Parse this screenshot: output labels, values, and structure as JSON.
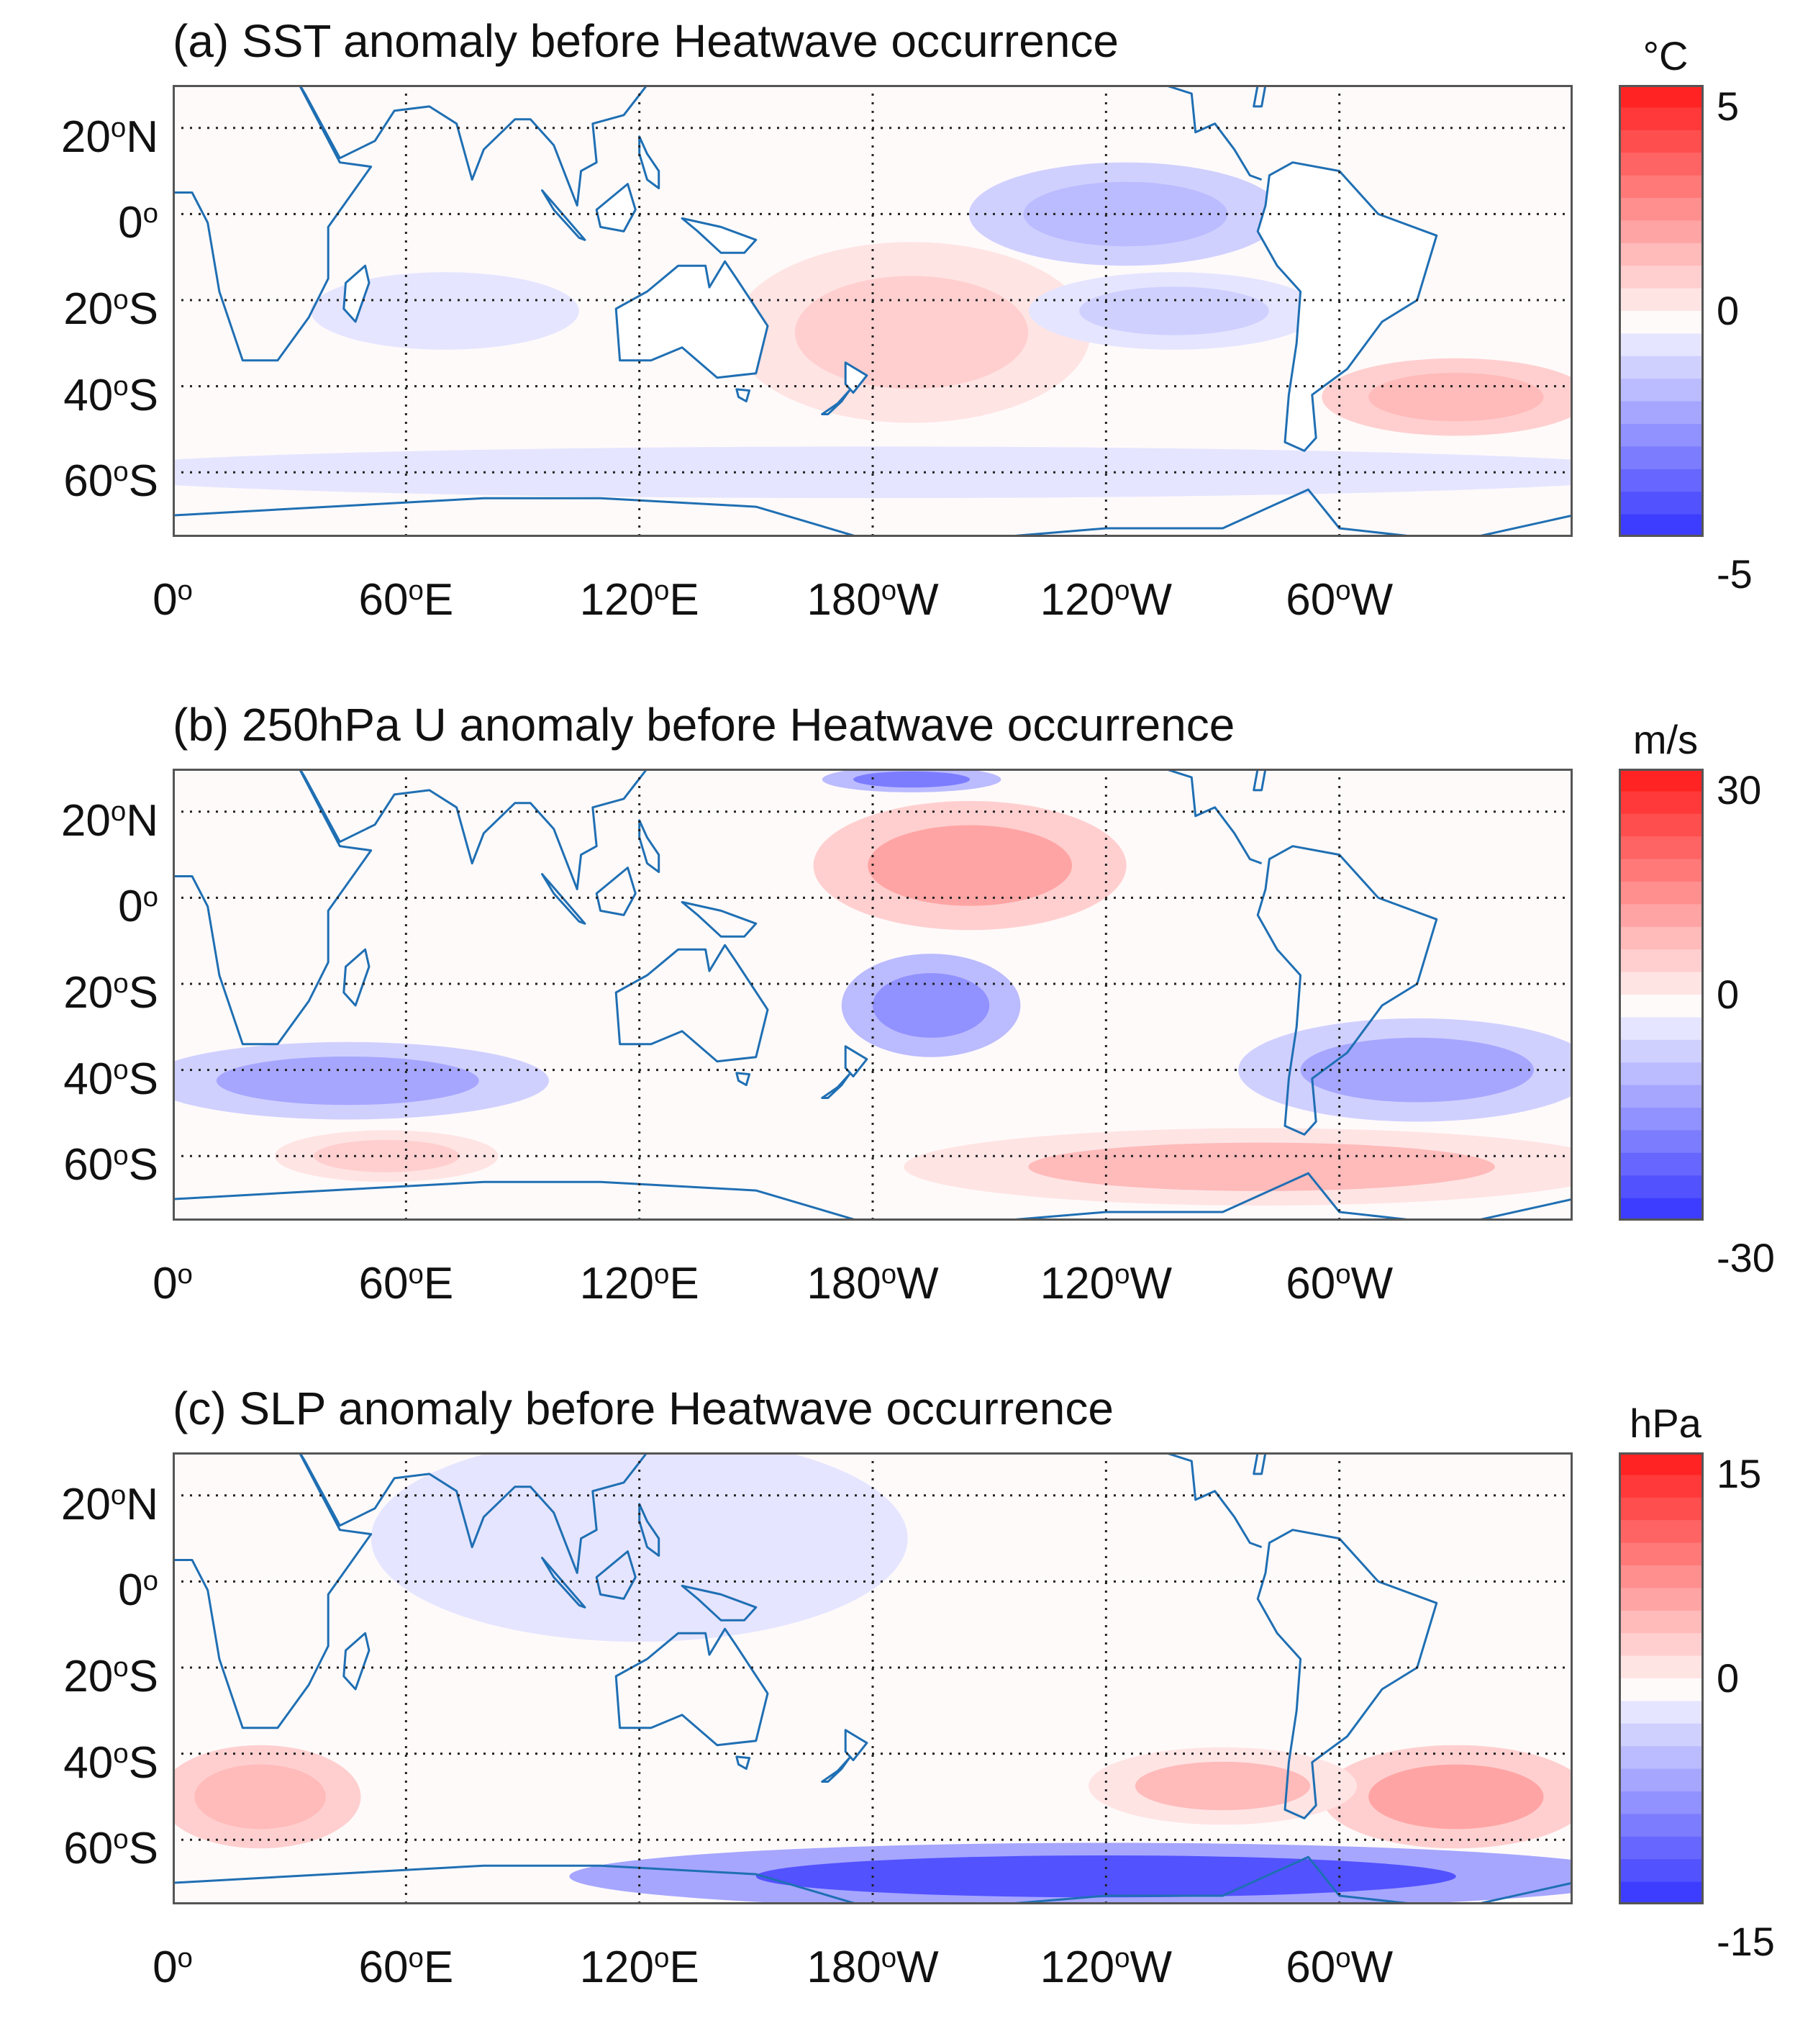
{
  "chart_data": [
    {
      "type": "heatmap",
      "title": "(a) SST anomaly before Heatwave occurrence",
      "variable": "SST",
      "unit": "°C",
      "clim": [
        -5,
        5
      ],
      "colorbar_ticks": [
        "5",
        "0",
        "-5"
      ],
      "lon_range": [
        0,
        360
      ],
      "lat_range": [
        -75,
        30
      ],
      "anomaly_regions": [
        {
          "region": "SW Pacific / east of Australia",
          "lon": [
            150,
            230
          ],
          "lat": [
            -45,
            -10
          ],
          "value": 1.2
        },
        {
          "region": "SW Atlantic off Argentina",
          "lon": [
            300,
            360
          ],
          "lat": [
            -50,
            -35
          ],
          "value": 1.5
        },
        {
          "region": "Eastern equatorial Pacific",
          "lon": [
            210,
            280
          ],
          "lat": [
            -10,
            10
          ],
          "value": -1.5
        },
        {
          "region": "Subtropical SE Pacific",
          "lon": [
            225,
            290
          ],
          "lat": [
            -30,
            -15
          ],
          "value": -1.0
        },
        {
          "region": "Southern Ocean band",
          "lon": [
            0,
            360
          ],
          "lat": [
            -65,
            -55
          ],
          "value": -0.7
        },
        {
          "region": "Western Indian Ocean",
          "lon": [
            40,
            100
          ],
          "lat": [
            -30,
            -15
          ],
          "value": -0.5
        }
      ]
    },
    {
      "type": "heatmap",
      "title": "(b) 250hPa U anomaly before Heatwave occurrence",
      "variable": "250hPa U",
      "unit": "m/s",
      "clim": [
        -30,
        30
      ],
      "colorbar_ticks": [
        "30",
        "0",
        "-30"
      ],
      "lon_range": [
        0,
        360
      ],
      "lat_range": [
        -75,
        30
      ],
      "anomaly_regions": [
        {
          "region": "Central Pacific near equator",
          "lon": [
            170,
            240
          ],
          "lat": [
            -5,
            20
          ],
          "value": 12
        },
        {
          "region": "North Pacific jet",
          "lon": [
            170,
            210
          ],
          "lat": [
            25,
            30
          ],
          "value": -18
        },
        {
          "region": "Indian Ocean 40S",
          "lon": [
            0,
            90
          ],
          "lat": [
            -50,
            -35
          ],
          "value": -12
        },
        {
          "region": "South Pacific 25S",
          "lon": [
            175,
            215
          ],
          "lat": [
            -35,
            -15
          ],
          "value": -14
        },
        {
          "region": "South America / Atlantic 40S",
          "lon": [
            280,
            360
          ],
          "lat": [
            -50,
            -30
          ],
          "value": -12
        },
        {
          "region": "Southern Ocean 60S Pacific",
          "lon": [
            200,
            360
          ],
          "lat": [
            -70,
            -55
          ],
          "value": 8
        },
        {
          "region": "Southern Ocean 60S Indian",
          "lon": [
            30,
            80
          ],
          "lat": [
            -65,
            -55
          ],
          "value": 7
        }
      ]
    },
    {
      "type": "heatmap",
      "title": "(c) SLP anomaly before Heatwave occurrence",
      "variable": "SLP",
      "unit": "hPa",
      "clim": [
        -15,
        15
      ],
      "colorbar_ticks": [
        "15",
        "0",
        "-15"
      ],
      "lon_range": [
        0,
        360
      ],
      "lat_range": [
        -75,
        30
      ],
      "anomaly_regions": [
        {
          "region": "South Atlantic / S Africa 50S",
          "lon": [
            0,
            45
          ],
          "lat": [
            -60,
            -40
          ],
          "value": 5
        },
        {
          "region": "SW Atlantic 50S",
          "lon": [
            300,
            360
          ],
          "lat": [
            -60,
            -40
          ],
          "value": 6
        },
        {
          "region": "SE Pacific 45S",
          "lon": [
            240,
            300
          ],
          "lat": [
            -55,
            -40
          ],
          "value": 4
        },
        {
          "region": "Antarctic margin",
          "lon": [
            120,
            360
          ],
          "lat": [
            -75,
            -62
          ],
          "value": -12
        },
        {
          "region": "Tropical Pacific / Indian",
          "lon": [
            60,
            180
          ],
          "lat": [
            -10,
            30
          ],
          "value": -2
        }
      ]
    }
  ],
  "axes": {
    "yticks": [
      "20",
      "N",
      "0",
      "20",
      "S",
      "40",
      "S",
      "60",
      "S"
    ],
    "xticks": [
      "0",
      "60",
      "E",
      "120",
      "E",
      "180",
      "W",
      "120",
      "W",
      "60",
      "W"
    ],
    "degree_mark": "o"
  }
}
